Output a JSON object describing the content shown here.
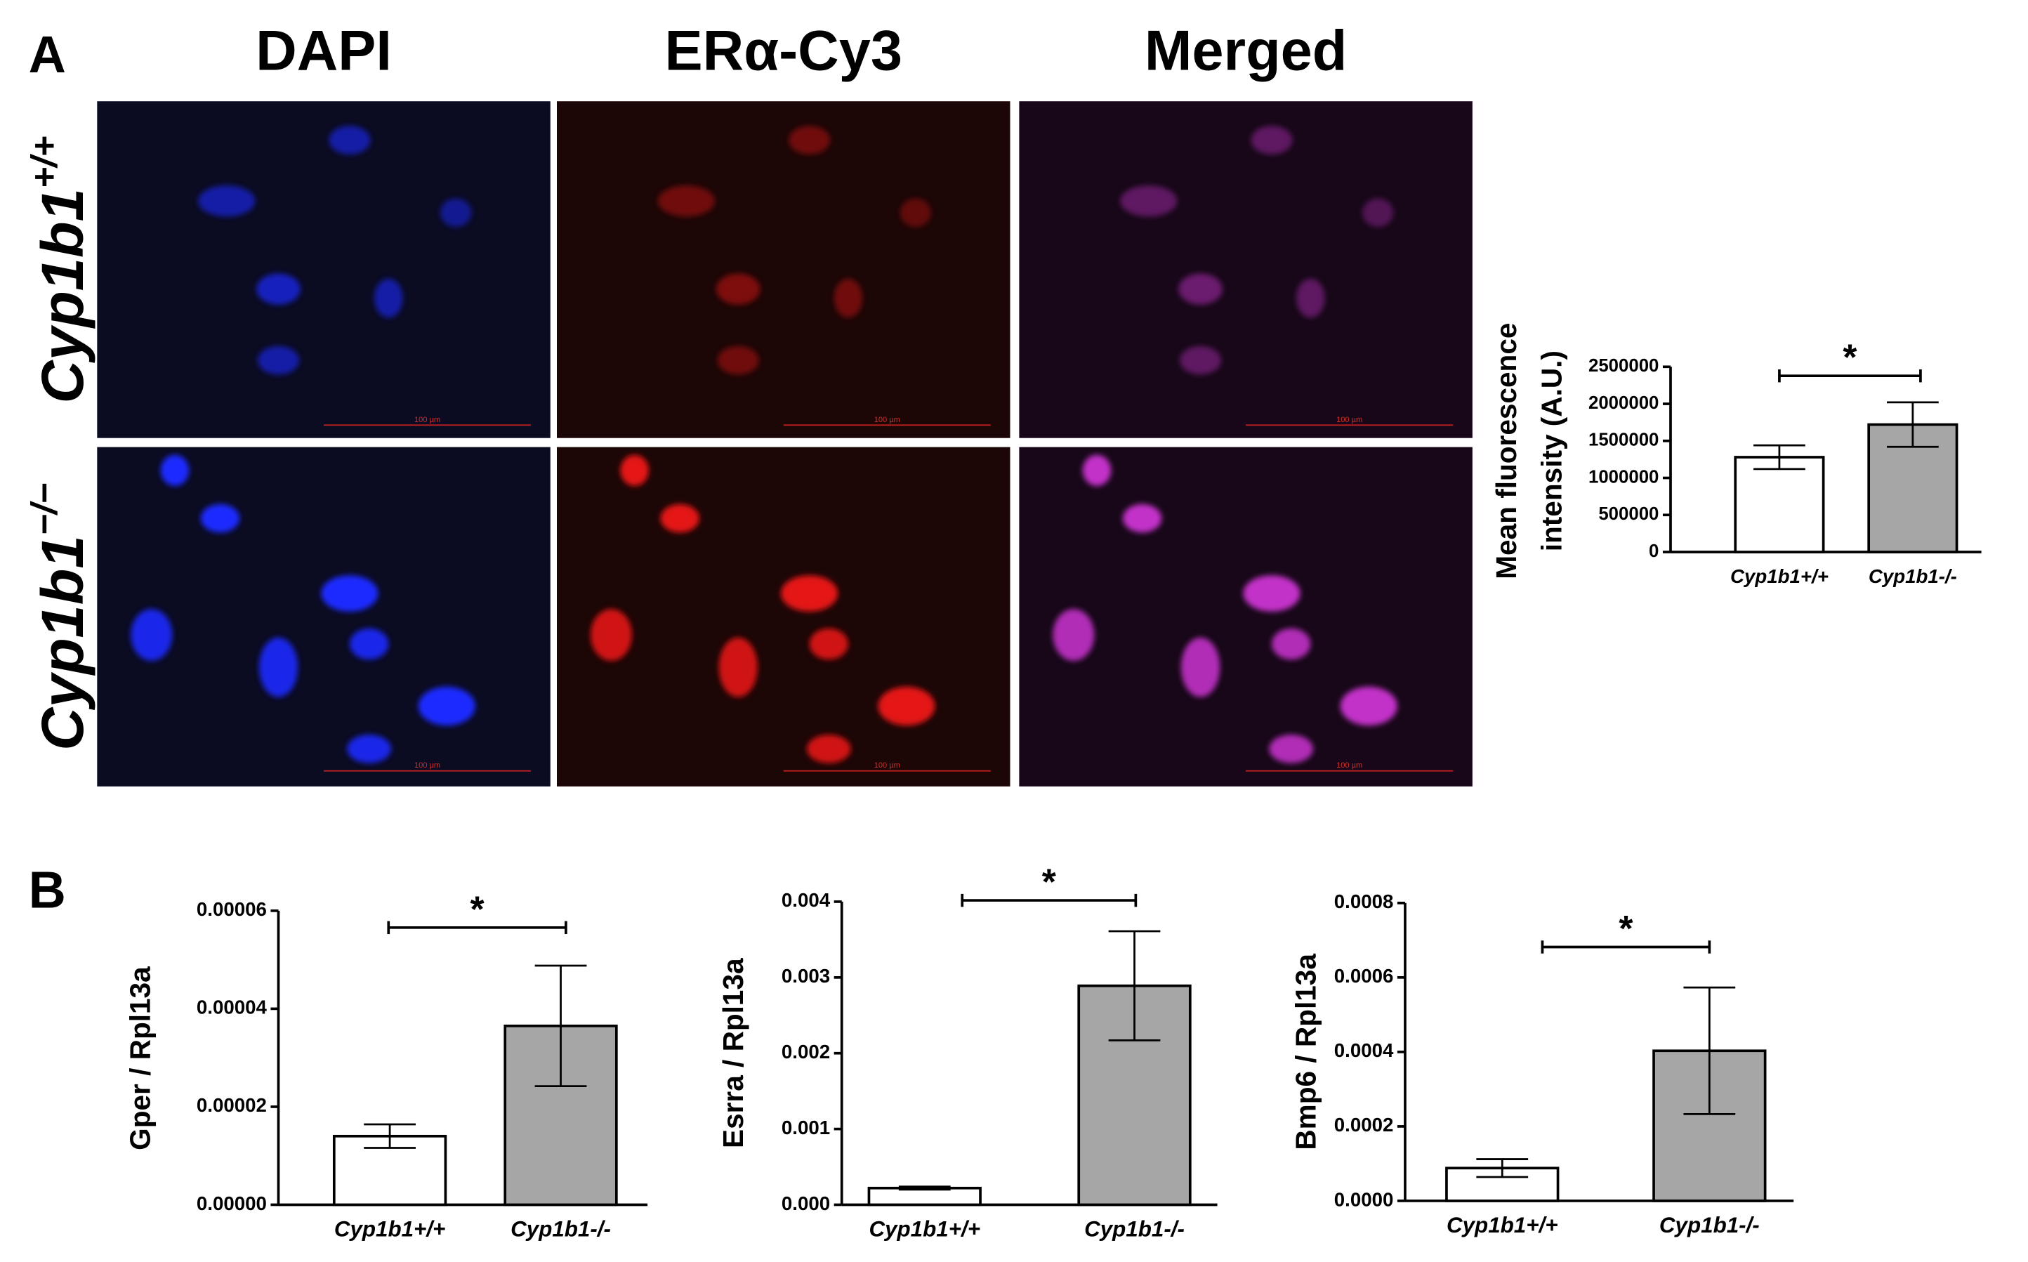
{
  "panel_a": {
    "label": "A",
    "columns": [
      "DAPI",
      "ERα-Cy3",
      "Merged"
    ],
    "rows": [
      {
        "base": "Cyp1b1",
        "sup": "+/+"
      },
      {
        "base": "Cyp1b1",
        "sup": "−/−"
      }
    ],
    "scale_bar": "100 µm"
  },
  "panel_b": {
    "label": "B"
  },
  "chart_data": [
    {
      "type": "bar",
      "ylabel": [
        "Mean fluorescence",
        "intensity (A.U.)"
      ],
      "categories": [
        "Cyp1b1+/+",
        "Cyp1b1-/-"
      ],
      "values": [
        1280000,
        1720000
      ],
      "errors": [
        160000,
        300000
      ],
      "colors": [
        "#ffffff",
        "#a6a6a6"
      ],
      "ylim": [
        0,
        2500000
      ],
      "yticks": [
        0,
        500000,
        1000000,
        1500000,
        2000000,
        2500000
      ],
      "significance": "*"
    },
    {
      "type": "bar",
      "ylabel": [
        "Gper / Rpl13a"
      ],
      "categories": [
        "Cyp1b1+/+",
        "Cyp1b1-/-"
      ],
      "values": [
        1.4e-05,
        3.65e-05
      ],
      "errors": [
        2.4e-06,
        1.23e-05
      ],
      "colors": [
        "#ffffff",
        "#a6a6a6"
      ],
      "ylim": [
        0,
        6e-05
      ],
      "yticks": [
        {
          "value": 0,
          "label": "0.00000"
        },
        {
          "value": 2e-05,
          "label": "0.00002"
        },
        {
          "value": 4e-05,
          "label": "0.00004"
        },
        {
          "value": 6e-05,
          "label": "0.00006"
        }
      ],
      "significance": "*"
    },
    {
      "type": "bar",
      "ylabel": [
        "Esrra / Rpl13a"
      ],
      "categories": [
        "Cyp1b1+/+",
        "Cyp1b1-/-"
      ],
      "values": [
        0.00022,
        0.00289
      ],
      "errors": [
        2e-05,
        0.00072
      ],
      "colors": [
        "#ffffff",
        "#a6a6a6"
      ],
      "ylim": [
        0,
        0.004
      ],
      "yticks": [
        {
          "value": 0,
          "label": "0.000"
        },
        {
          "value": 0.001,
          "label": "0.001"
        },
        {
          "value": 0.002,
          "label": "0.002"
        },
        {
          "value": 0.003,
          "label": "0.003"
        },
        {
          "value": 0.004,
          "label": "0.004"
        }
      ],
      "significance": "*"
    },
    {
      "type": "bar",
      "ylabel": [
        "Bmp6 / Rpl13a"
      ],
      "categories": [
        "Cyp1b1+/+",
        "Cyp1b1-/-"
      ],
      "values": [
        8.8e-05,
        0.000403
      ],
      "errors": [
        2.4e-05,
        0.00017
      ],
      "colors": [
        "#ffffff",
        "#a6a6a6"
      ],
      "ylim": [
        0,
        0.0008
      ],
      "yticks": [
        {
          "value": 0,
          "label": "0.0000"
        },
        {
          "value": 0.0002,
          "label": "0.0002"
        },
        {
          "value": 0.0004,
          "label": "0.0004"
        },
        {
          "value": 0.0006,
          "label": "0.0006"
        },
        {
          "value": 0.0008,
          "label": "0.0008"
        }
      ],
      "significance": "*"
    }
  ]
}
